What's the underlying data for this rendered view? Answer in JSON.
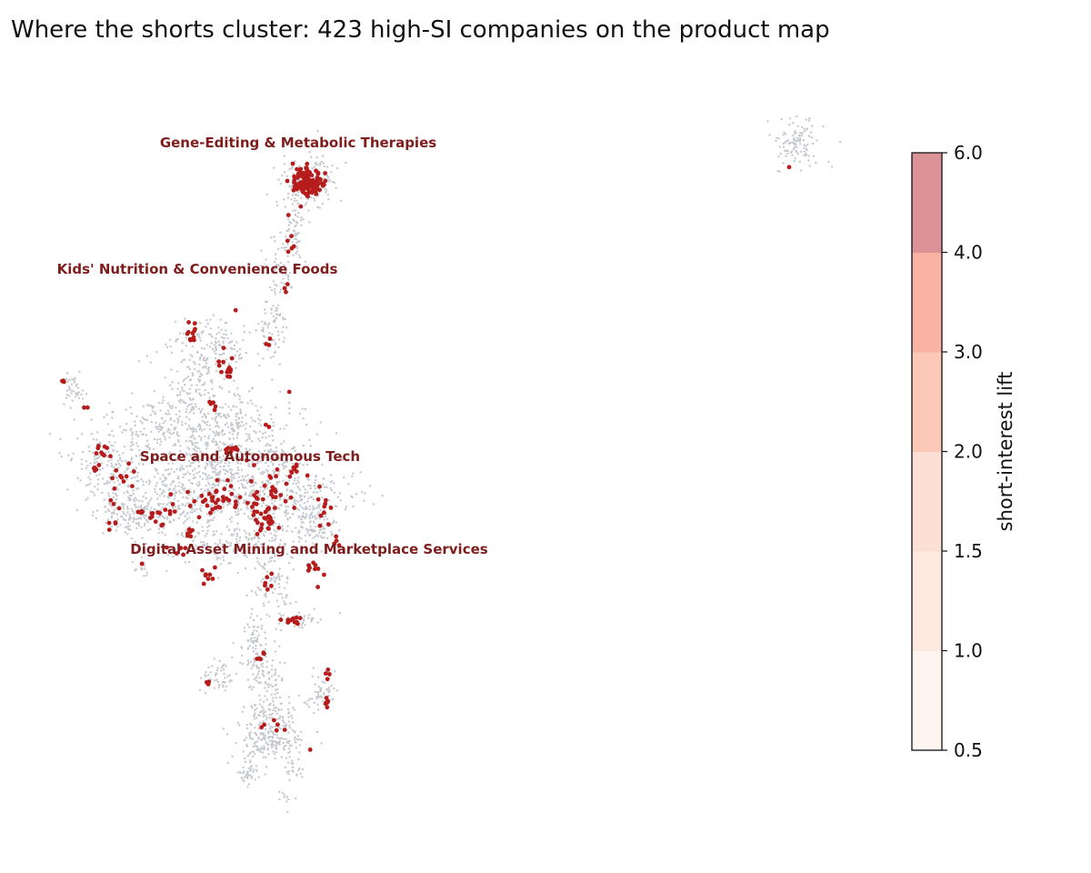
{
  "chart_data": {
    "type": "scatter",
    "title": "Where the shorts cluster: 423 high-SI companies on the product map",
    "xlabel": "",
    "ylabel": "",
    "axes_visible": false,
    "cluster_labels": [
      "Gene-Editing & Metabolic Therapies",
      "Kids' Nutrition & Convenience Foods",
      "Space and Autonomous Tech",
      "Digital Asset Mining and Marketplace Services"
    ],
    "series": [
      {
        "name": "",
        "color": "#c5c9cf",
        "role": "all companies (background)",
        "approx_count": 4000
      },
      {
        "name": "",
        "color": "#b71c1c",
        "role": "high-SI companies",
        "count": 423
      }
    ],
    "colorbar": {
      "label": "short-interest lift",
      "bounds": [
        0.5,
        1.0,
        1.5,
        2.0,
        3.0,
        4.0,
        6.0
      ],
      "tick_labels": [
        "0.5",
        "1.0",
        "1.5",
        "2.0",
        "3.0",
        "4.0",
        "6.0"
      ],
      "colors": [
        "#fff5f0",
        "#fee9e1",
        "#fde0d5",
        "#fcc9b8",
        "#f9b3a3",
        "#dc9398"
      ]
    }
  }
}
